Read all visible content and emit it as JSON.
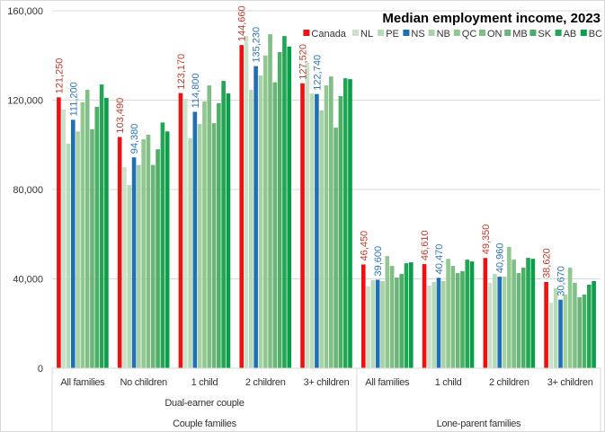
{
  "chart_data": {
    "type": "bar",
    "title": "Median employment income, 2023",
    "ylim": [
      0,
      160000
    ],
    "yticks": [
      0,
      40000,
      80000,
      120000,
      160000
    ],
    "ytick_labels": [
      "0",
      "40,000",
      "80,000",
      "120,000",
      "160,000"
    ],
    "grid": true,
    "legend_position": "top-right",
    "categories": [
      "All families",
      "No children",
      "1 child",
      "2 children",
      "3+ children",
      "All families",
      "1 child",
      "2 children",
      "3+ children"
    ],
    "category_groups": [
      {
        "label": "Couple families",
        "sublabel": "Dual-earner couple",
        "span": 5
      },
      {
        "label": "Lone-parent families",
        "sublabel": "",
        "span": 4
      }
    ],
    "series": [
      {
        "name": "Canada",
        "color": "#ee1111",
        "label_color": "#c0392b",
        "labeled": true,
        "values": [
          121250,
          103490,
          123170,
          144660,
          127520,
          46450,
          46610,
          49350,
          38620
        ]
      },
      {
        "name": "NL",
        "color": "#c9e2c9",
        "values": [
          115800,
          90000,
          120600,
          148700,
          136700,
          36600,
          37000,
          38200,
          29300
        ]
      },
      {
        "name": "PE",
        "color": "#b6dab6",
        "values": [
          100500,
          82000,
          103000,
          124600,
          123000,
          39400,
          38600,
          42200,
          35800
        ]
      },
      {
        "name": "NS",
        "color": "#1f6fb5",
        "label_color": "#2e75b6",
        "labeled": true,
        "values": [
          111200,
          94380,
          114800,
          135230,
          122740,
          39600,
          40470,
          40960,
          30670
        ]
      },
      {
        "name": "NB",
        "color": "#a6d2a6",
        "values": [
          106000,
          91000,
          109300,
          131000,
          115400,
          39000,
          39000,
          41000,
          33000
        ]
      },
      {
        "name": "QC",
        "color": "#90c890",
        "values": [
          119000,
          102500,
          119400,
          140000,
          126600,
          50200,
          49000,
          54300,
          45000
        ]
      },
      {
        "name": "ON",
        "color": "#7fbf86",
        "values": [
          124600,
          104500,
          126600,
          149500,
          130600,
          45800,
          45800,
          48600,
          38200
        ]
      },
      {
        "name": "MB",
        "color": "#6cb479",
        "values": [
          107000,
          91000,
          109700,
          128000,
          107700,
          40600,
          42600,
          42600,
          31800
        ]
      },
      {
        "name": "SK",
        "color": "#4caf66",
        "values": [
          117000,
          98000,
          118600,
          141500,
          121800,
          42200,
          43400,
          45000,
          33000
        ]
      },
      {
        "name": "AB",
        "color": "#22a654",
        "values": [
          127000,
          110000,
          128600,
          148700,
          129800,
          47000,
          48600,
          49400,
          37400
        ]
      },
      {
        "name": "BC",
        "color": "#0a9e4a",
        "values": [
          121000,
          106000,
          123000,
          144000,
          129400,
          47400,
          47800,
          49000,
          39000
        ]
      }
    ]
  }
}
